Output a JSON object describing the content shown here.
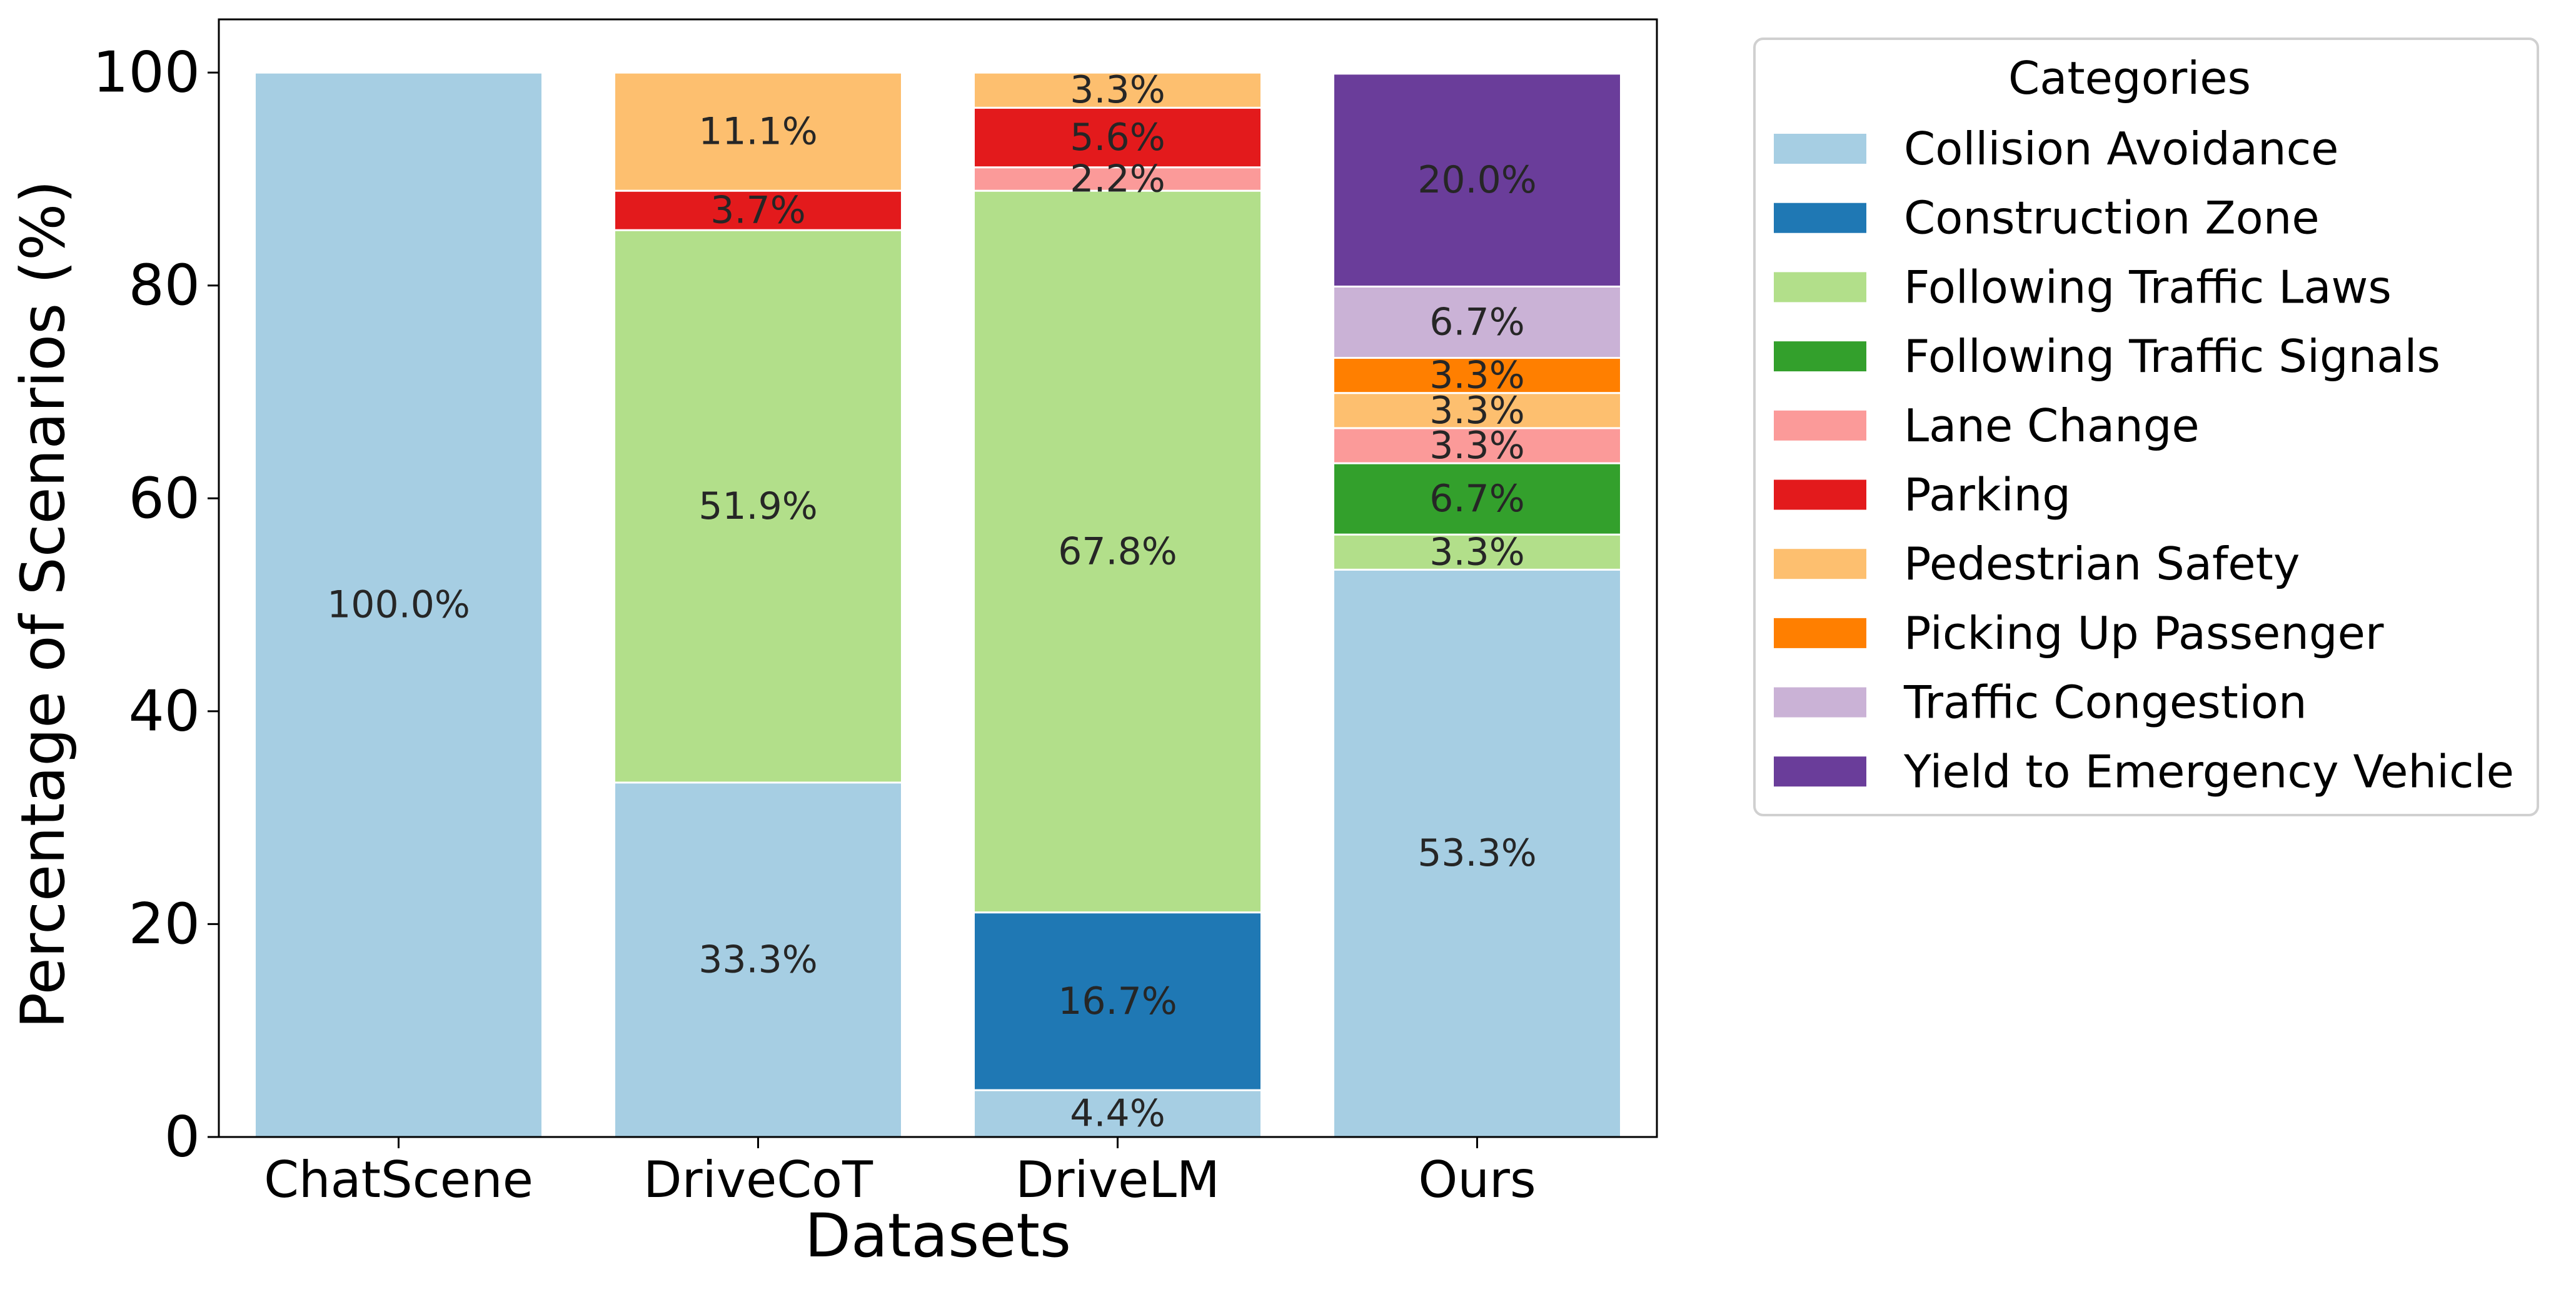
{
  "chart_data": {
    "type": "bar",
    "stacked": true,
    "title": "",
    "xlabel": "Datasets",
    "ylabel": "Percentage of Scenarios (%)",
    "ylim": [
      0,
      105
    ],
    "yticks": [
      0,
      20,
      40,
      60,
      80,
      100
    ],
    "grid": false,
    "categories": [
      "ChatScene",
      "DriveCoT",
      "DriveLM",
      "Ours"
    ],
    "series": [
      {
        "name": "Collision Avoidance",
        "color": "#a6cee3",
        "values": [
          100.0,
          33.3,
          4.4,
          53.3
        ],
        "labels": [
          "100.0%",
          "33.3%",
          "4.4%",
          "53.3%"
        ]
      },
      {
        "name": "Construction Zone",
        "color": "#1f78b4",
        "values": [
          0,
          0,
          16.7,
          0
        ],
        "labels": [
          "",
          "",
          "16.7%",
          ""
        ]
      },
      {
        "name": "Following Traffic Laws",
        "color": "#b2df8a",
        "values": [
          0,
          51.9,
          67.8,
          3.3
        ],
        "labels": [
          "",
          "51.9%",
          "67.8%",
          "3.3%"
        ]
      },
      {
        "name": "Following Traffic Signals",
        "color": "#33a02c",
        "values": [
          0,
          0,
          0,
          6.7
        ],
        "labels": [
          "",
          "",
          "",
          "6.7%"
        ]
      },
      {
        "name": "Lane Change",
        "color": "#fb9a99",
        "values": [
          0,
          0,
          2.2,
          3.3
        ],
        "labels": [
          "",
          "",
          "2.2%",
          "3.3%"
        ]
      },
      {
        "name": "Parking",
        "color": "#e31a1c",
        "values": [
          0,
          3.7,
          5.6,
          0
        ],
        "labels": [
          "",
          "3.7%",
          "5.6%",
          ""
        ]
      },
      {
        "name": "Pedestrian Safety",
        "color": "#fdbf6f",
        "values": [
          0,
          11.1,
          3.3,
          3.3
        ],
        "labels": [
          "",
          "11.1%",
          "3.3%",
          "3.3%"
        ]
      },
      {
        "name": "Picking Up Passenger",
        "color": "#ff7f00",
        "values": [
          0,
          0,
          0,
          3.3
        ],
        "labels": [
          "",
          "",
          "",
          "3.3%"
        ]
      },
      {
        "name": "Traffic Congestion",
        "color": "#cab2d6",
        "values": [
          0,
          0,
          0,
          6.7
        ],
        "labels": [
          "",
          "",
          "",
          "6.7%"
        ]
      },
      {
        "name": "Yield to Emergency Vehicle",
        "color": "#6a3d9a",
        "values": [
          0,
          0,
          0,
          20.0
        ],
        "labels": [
          "",
          "",
          "",
          "20.0%"
        ]
      }
    ],
    "legend": {
      "title": "Categories",
      "placement": "outside-right"
    }
  }
}
